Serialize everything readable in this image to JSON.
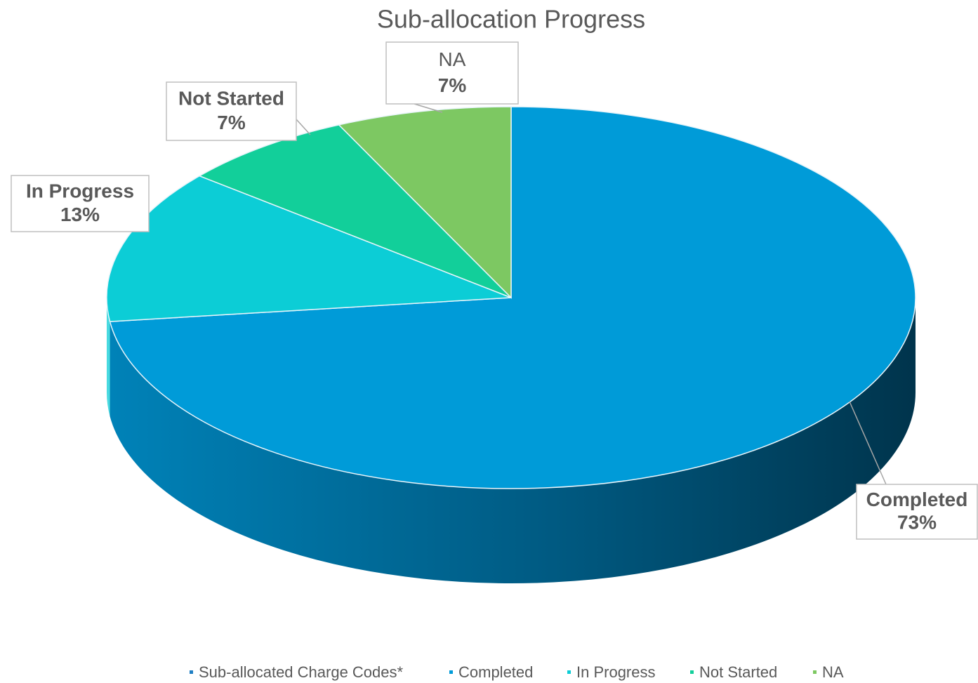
{
  "chart_data": {
    "type": "pie",
    "title": "Sub-allocation Progress",
    "categories": [
      "Sub-allocated Charge Codes*",
      "Completed",
      "In Progress",
      "Not Started",
      "NA"
    ],
    "values": [
      null,
      73,
      13,
      7,
      7
    ],
    "value_labels": [
      null,
      "73%",
      "13%",
      "7%",
      "7%"
    ],
    "colors": [
      "#1f7fc4",
      "#009bd8",
      "#0ccdd6",
      "#12cf9a",
      "#7dc862"
    ],
    "legend": "bottom"
  }
}
